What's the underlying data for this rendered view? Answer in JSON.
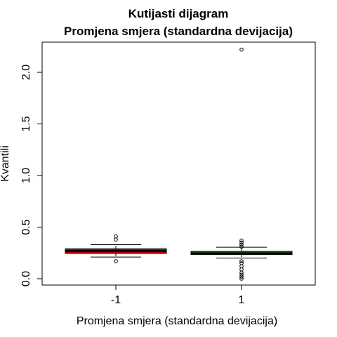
{
  "chart_data": {
    "type": "boxplot",
    "title": "Kutijasti dijagram",
    "subtitle": "Promjena smjera (standardna devijacija)",
    "xlabel": "Promjena smjera (standardna devijacija)",
    "ylabel": "Kvantili",
    "categories": [
      "-1",
      "1"
    ],
    "ylim": [
      -0.06,
      2.3
    ],
    "yticks": [
      0.0,
      0.5,
      1.0,
      1.5,
      2.0
    ],
    "ytick_labels": [
      "0.0",
      "0.5",
      "1.0",
      "1.5",
      "2.0"
    ],
    "grid": false,
    "boxes": [
      {
        "category": "-1",
        "whisker_low": 0.21,
        "q1": 0.245,
        "median": 0.27,
        "q3": 0.29,
        "whisker_high": 0.33,
        "fill": "#cc0000",
        "outliers": [
          0.17,
          0.38,
          0.41
        ]
      },
      {
        "category": "1",
        "whisker_low": 0.2,
        "q1": 0.235,
        "median": 0.245,
        "q3": 0.265,
        "whisker_high": 0.305,
        "fill": "#1a7a1a",
        "outliers": [
          0.0,
          0.02,
          0.04,
          0.06,
          0.09,
          0.12,
          0.15,
          0.17,
          0.31,
          0.33,
          0.35,
          0.37,
          2.22
        ]
      }
    ]
  }
}
